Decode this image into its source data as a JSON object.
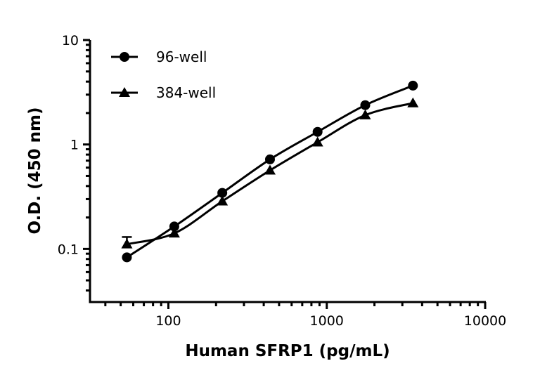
{
  "chart_data": {
    "type": "line",
    "title": "",
    "xlabel": "Human SFRP1 (pg/mL)",
    "ylabel": "O.D. (450 nm)",
    "xscale": "log",
    "yscale": "log",
    "xlim": [
      32,
      10000
    ],
    "ylim": [
      0.031,
      10
    ],
    "xticks": [
      100,
      1000,
      10000
    ],
    "xtick_labels": [
      "100",
      "1000",
      "10000"
    ],
    "yticks": [
      0.1,
      1,
      10
    ],
    "ytick_labels": [
      "0.1",
      "1",
      "10"
    ],
    "grid": false,
    "legend_position": "top-left",
    "series": [
      {
        "name": "96-well",
        "marker": "circle",
        "color": "#000000",
        "x": [
          54.7,
          109,
          219,
          438,
          875,
          1750,
          3500
        ],
        "y": [
          0.083,
          0.164,
          0.344,
          0.72,
          1.32,
          2.38,
          3.66
        ]
      },
      {
        "name": "384-well",
        "marker": "triangle",
        "color": "#000000",
        "x": [
          54.7,
          109,
          219,
          438,
          875,
          1750,
          3500
        ],
        "y": [
          0.111,
          0.141,
          0.286,
          0.565,
          1.05,
          1.91,
          2.49
        ],
        "error_upper": [
          0.13,
          null,
          null,
          null,
          null,
          null,
          null
        ]
      }
    ]
  }
}
